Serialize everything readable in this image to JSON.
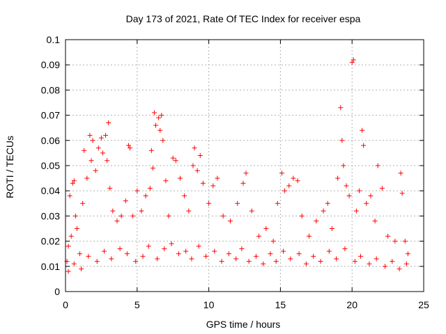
{
  "chart_data": {
    "type": "scatter",
    "title": "Day 173 of 2021, Rate Of TEC Index for receiver espa",
    "xlabel": "GPS time / hours",
    "ylabel": "ROTI / TECUs",
    "xlim": [
      0,
      25
    ],
    "ylim": [
      0,
      0.1
    ],
    "x_ticks": [
      0,
      5,
      10,
      15,
      20,
      25
    ],
    "x_tick_labels": [
      "0",
      "5",
      "10",
      "15",
      "20",
      "25"
    ],
    "y_ticks": [
      0,
      0.01,
      0.02,
      0.03,
      0.04,
      0.05,
      0.06,
      0.07,
      0.08,
      0.09,
      0.1
    ],
    "y_tick_labels": [
      "0",
      "0.01",
      "0.02",
      "0.03",
      "0.04",
      "0.05",
      "0.06",
      "0.07",
      "0.08",
      "0.09",
      "0.1"
    ],
    "grid": true,
    "marker": "+",
    "color": "#ff0000",
    "series": [
      {
        "name": "ROTI",
        "points": [
          [
            0.1,
            0.012
          ],
          [
            0.2,
            0.018
          ],
          [
            0.3,
            0.038
          ],
          [
            0.4,
            0.022
          ],
          [
            0.5,
            0.043
          ],
          [
            0.6,
            0.044
          ],
          [
            0.7,
            0.03
          ],
          [
            0.8,
            0.025
          ],
          [
            1.0,
            0.015
          ],
          [
            1.2,
            0.035
          ],
          [
            1.3,
            0.056
          ],
          [
            1.5,
            0.045
          ],
          [
            1.7,
            0.062
          ],
          [
            1.8,
            0.052
          ],
          [
            1.9,
            0.06
          ],
          [
            2.1,
            0.048
          ],
          [
            2.3,
            0.057
          ],
          [
            2.5,
            0.061
          ],
          [
            2.6,
            0.055
          ],
          [
            2.8,
            0.062
          ],
          [
            2.9,
            0.052
          ],
          [
            3.0,
            0.067
          ],
          [
            3.1,
            0.041
          ],
          [
            3.3,
            0.032
          ],
          [
            3.6,
            0.028
          ],
          [
            3.9,
            0.03
          ],
          [
            4.2,
            0.036
          ],
          [
            4.4,
            0.058
          ],
          [
            4.5,
            0.057
          ],
          [
            4.7,
            0.03
          ],
          [
            5.0,
            0.04
          ],
          [
            5.3,
            0.032
          ],
          [
            5.6,
            0.038
          ],
          [
            5.9,
            0.041
          ],
          [
            6.0,
            0.056
          ],
          [
            6.1,
            0.049
          ],
          [
            6.2,
            0.071
          ],
          [
            6.3,
            0.066
          ],
          [
            6.5,
            0.069
          ],
          [
            6.6,
            0.064
          ],
          [
            6.7,
            0.07
          ],
          [
            6.8,
            0.06
          ],
          [
            7.0,
            0.044
          ],
          [
            7.2,
            0.03
          ],
          [
            7.5,
            0.053
          ],
          [
            7.7,
            0.052
          ],
          [
            8.0,
            0.045
          ],
          [
            8.3,
            0.038
          ],
          [
            8.6,
            0.032
          ],
          [
            8.9,
            0.05
          ],
          [
            9.0,
            0.057
          ],
          [
            9.2,
            0.048
          ],
          [
            9.4,
            0.054
          ],
          [
            9.6,
            0.043
          ],
          [
            10.0,
            0.035
          ],
          [
            10.3,
            0.042
          ],
          [
            10.6,
            0.045
          ],
          [
            11.0,
            0.03
          ],
          [
            11.5,
            0.028
          ],
          [
            12.0,
            0.035
          ],
          [
            12.4,
            0.043
          ],
          [
            12.6,
            0.047
          ],
          [
            13.0,
            0.032
          ],
          [
            13.5,
            0.022
          ],
          [
            14.0,
            0.025
          ],
          [
            14.5,
            0.02
          ],
          [
            14.8,
            0.035
          ],
          [
            15.1,
            0.047
          ],
          [
            15.3,
            0.04
          ],
          [
            15.6,
            0.042
          ],
          [
            15.9,
            0.045
          ],
          [
            16.2,
            0.044
          ],
          [
            16.5,
            0.03
          ],
          [
            17.0,
            0.022
          ],
          [
            17.5,
            0.028
          ],
          [
            18.0,
            0.032
          ],
          [
            18.3,
            0.035
          ],
          [
            18.6,
            0.025
          ],
          [
            19.0,
            0.045
          ],
          [
            19.2,
            0.073
          ],
          [
            19.3,
            0.06
          ],
          [
            19.4,
            0.05
          ],
          [
            19.6,
            0.042
          ],
          [
            19.8,
            0.038
          ],
          [
            20.0,
            0.091
          ],
          [
            20.1,
            0.092
          ],
          [
            20.3,
            0.032
          ],
          [
            20.5,
            0.04
          ],
          [
            20.7,
            0.064
          ],
          [
            20.8,
            0.058
          ],
          [
            21.0,
            0.035
          ],
          [
            21.3,
            0.038
          ],
          [
            21.6,
            0.028
          ],
          [
            21.8,
            0.05
          ],
          [
            22.1,
            0.041
          ],
          [
            22.5,
            0.022
          ],
          [
            23.0,
            0.02
          ],
          [
            23.4,
            0.047
          ],
          [
            23.5,
            0.039
          ],
          [
            23.7,
            0.02
          ],
          [
            23.9,
            0.015
          ],
          [
            0.2,
            0.008
          ],
          [
            0.6,
            0.011
          ],
          [
            1.1,
            0.009
          ],
          [
            1.6,
            0.014
          ],
          [
            2.2,
            0.012
          ],
          [
            2.7,
            0.016
          ],
          [
            3.2,
            0.013
          ],
          [
            3.8,
            0.017
          ],
          [
            4.3,
            0.015
          ],
          [
            4.9,
            0.012
          ],
          [
            5.4,
            0.014
          ],
          [
            5.8,
            0.018
          ],
          [
            6.4,
            0.013
          ],
          [
            6.9,
            0.017
          ],
          [
            7.4,
            0.019
          ],
          [
            7.9,
            0.015
          ],
          [
            8.4,
            0.016
          ],
          [
            8.8,
            0.013
          ],
          [
            9.3,
            0.018
          ],
          [
            9.8,
            0.014
          ],
          [
            10.4,
            0.016
          ],
          [
            10.9,
            0.012
          ],
          [
            11.4,
            0.015
          ],
          [
            11.9,
            0.013
          ],
          [
            12.3,
            0.017
          ],
          [
            12.8,
            0.012
          ],
          [
            13.3,
            0.014
          ],
          [
            13.8,
            0.011
          ],
          [
            14.3,
            0.015
          ],
          [
            14.7,
            0.012
          ],
          [
            15.2,
            0.016
          ],
          [
            15.7,
            0.013
          ],
          [
            16.3,
            0.015
          ],
          [
            16.8,
            0.011
          ],
          [
            17.3,
            0.014
          ],
          [
            17.8,
            0.012
          ],
          [
            18.4,
            0.016
          ],
          [
            18.9,
            0.013
          ],
          [
            19.5,
            0.017
          ],
          [
            20.2,
            0.012
          ],
          [
            20.6,
            0.014
          ],
          [
            21.2,
            0.011
          ],
          [
            21.7,
            0.013
          ],
          [
            22.3,
            0.01
          ],
          [
            22.8,
            0.012
          ],
          [
            23.3,
            0.009
          ],
          [
            23.8,
            0.011
          ]
        ]
      }
    ]
  }
}
